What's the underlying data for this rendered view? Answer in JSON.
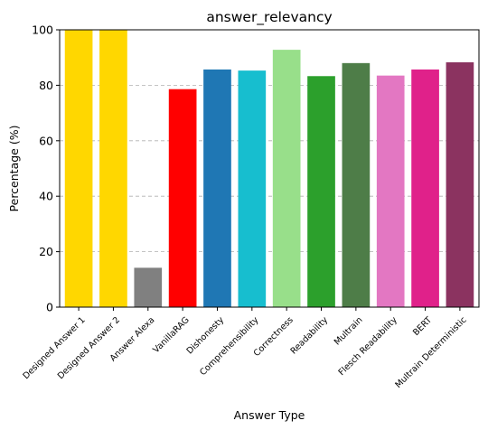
{
  "chart_data": {
    "type": "bar",
    "title": "answer_relevancy",
    "xlabel": "Answer Type",
    "ylabel": "Percentage (%)",
    "ylim": [
      0,
      100
    ],
    "yticks": [
      "0",
      "20",
      "40",
      "60",
      "80",
      "100"
    ],
    "grid": "y",
    "categories": [
      "Designed Answer 1",
      "Designed Answer 2",
      "Answer Alexa",
      "VanillaRAG",
      "Dishonesty",
      "Comprehensibility",
      "Correctness",
      "Readability",
      "Multrain",
      "Flesch Readability",
      "BERT",
      "Multrain Deterministic"
    ],
    "values": [
      100,
      100,
      14.2,
      78.6,
      85.7,
      85.3,
      92.8,
      83.3,
      88.0,
      83.5,
      85.7,
      88.3
    ],
    "colors": [
      "#FFD700",
      "#FFD700",
      "#808080",
      "#FF0000",
      "#1F77B4",
      "#17BECF",
      "#98DF8A",
      "#2CA02C",
      "#4E7D48",
      "#E377C2",
      "#E0218A",
      "#8B3360"
    ]
  }
}
